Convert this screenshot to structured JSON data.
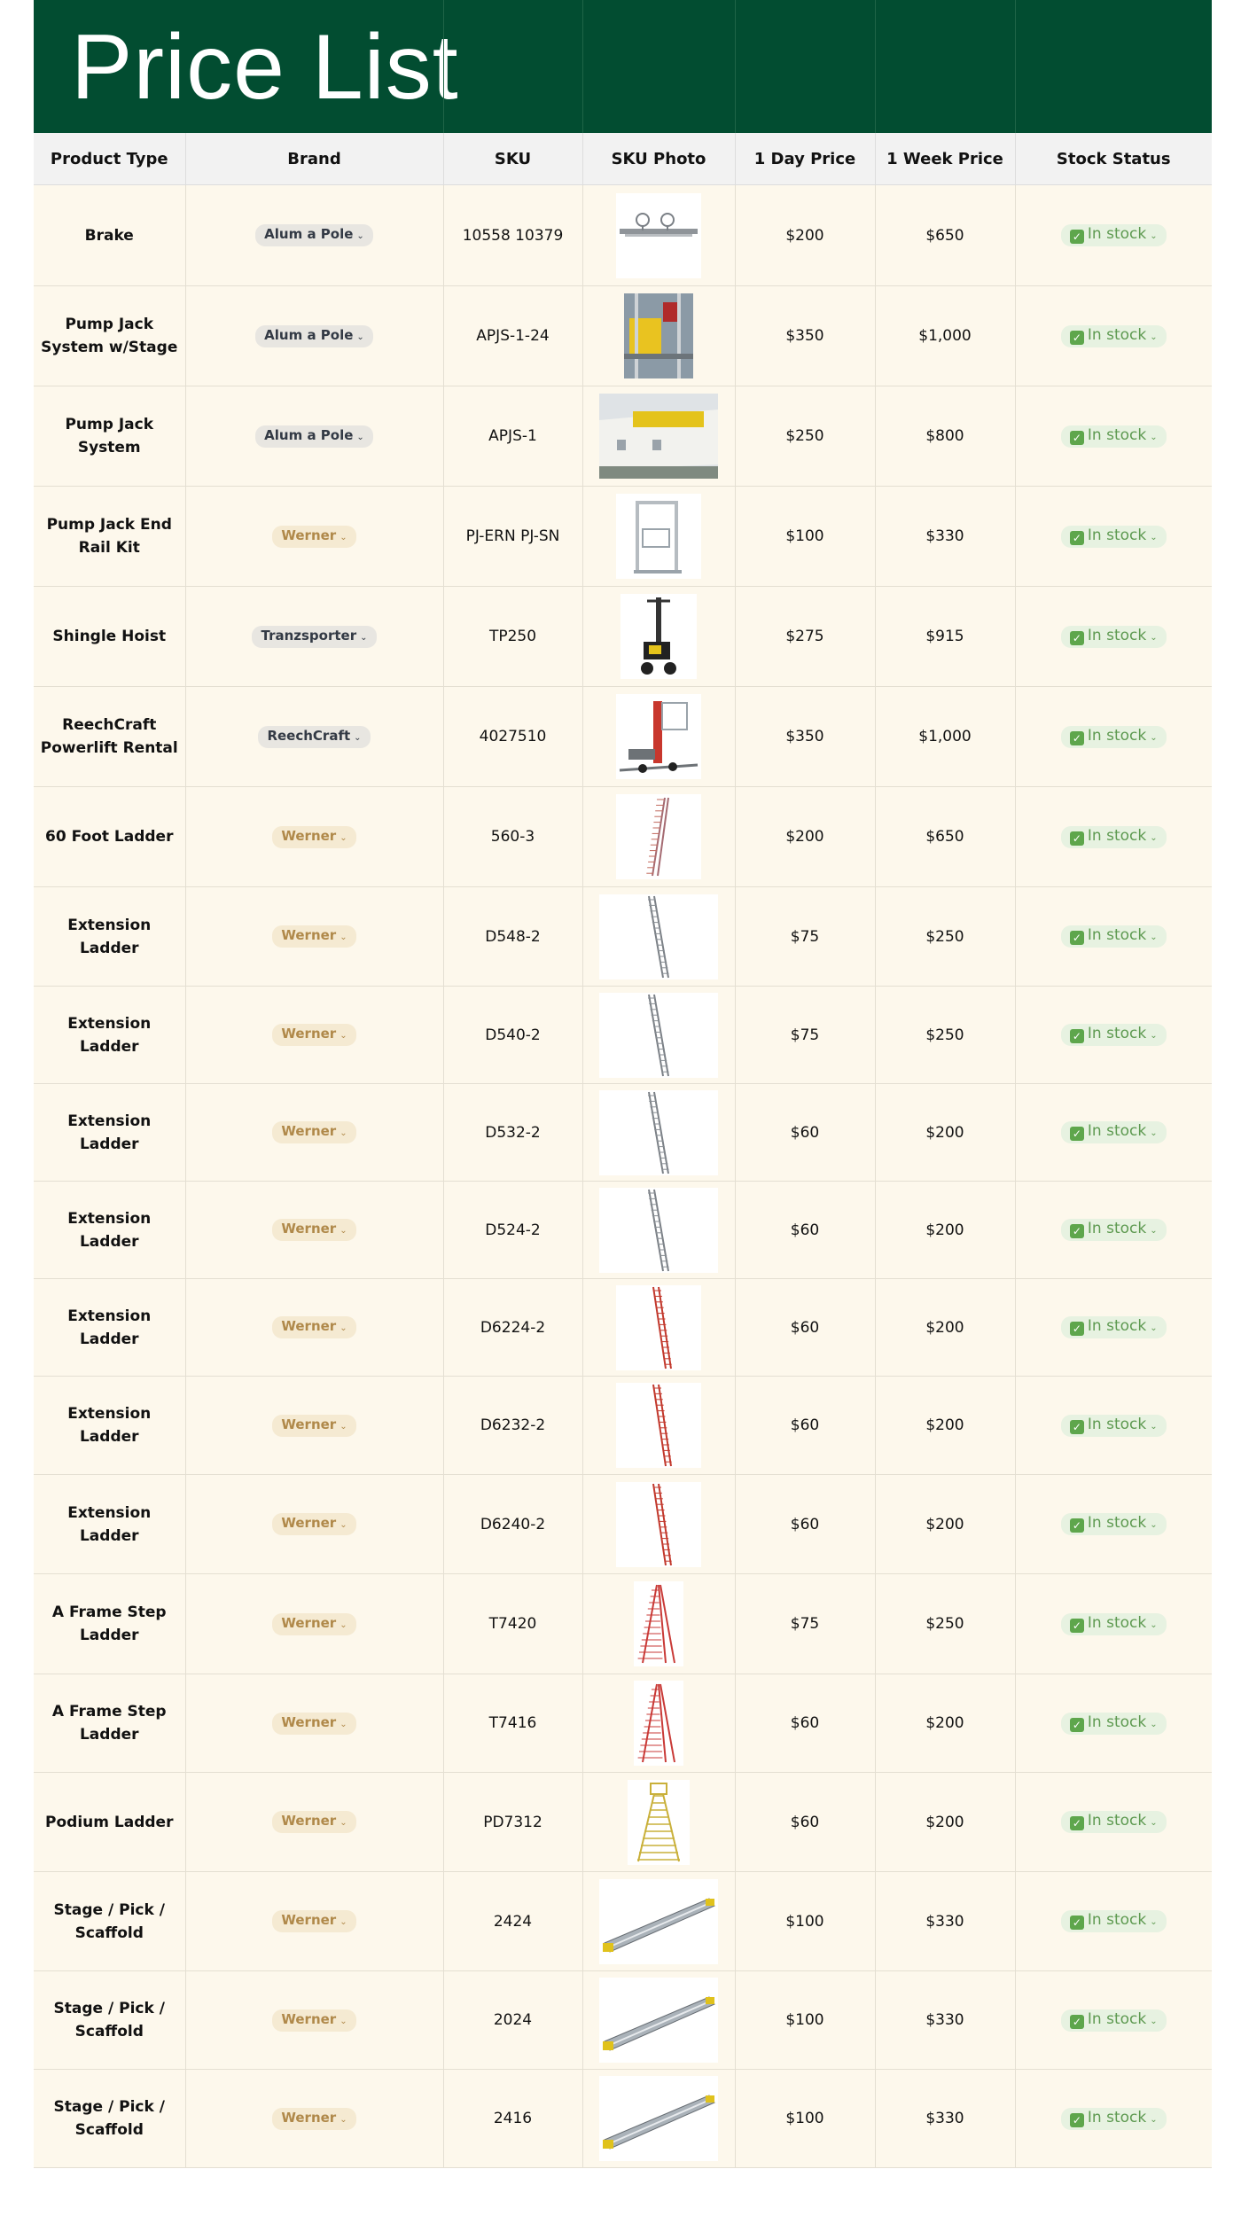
{
  "page": {
    "title": "Price List"
  },
  "columns": [
    "Product Type",
    "Brand",
    "SKU",
    "SKU Photo",
    "1 Day Price",
    "1 Week Price",
    "Stock Status"
  ],
  "colors": {
    "header_bg": "#024d31",
    "row_bg": "#fdf8ec",
    "in_stock": "#5e9a51",
    "brand_tan": "#b0894a"
  },
  "rows": [
    {
      "type": "Brake",
      "brand": "Alum a Pole",
      "sku": "10558 10379",
      "photo": "brake-photo",
      "day": "$200",
      "week": "$650",
      "stock": "In stock"
    },
    {
      "type": "Pump Jack System w/Stage",
      "brand": "Alum a Pole",
      "sku": "APJS-1-24",
      "photo": "pump-jack-stage-photo",
      "day": "$350",
      "week": "$1,000",
      "stock": "In stock"
    },
    {
      "type": "Pump Jack System",
      "brand": "Alum a Pole",
      "sku": "APJS-1",
      "photo": "pump-jack-system-photo",
      "day": "$250",
      "week": "$800",
      "stock": "In stock"
    },
    {
      "type": "Pump Jack End Rail Kit",
      "brand": "Werner",
      "sku": "PJ-ERN PJ-SN",
      "photo": "end-rail-kit-photo",
      "day": "$100",
      "week": "$330",
      "stock": "In stock"
    },
    {
      "type": "Shingle Hoist",
      "brand": "Tranzsporter",
      "sku": "TP250",
      "photo": "shingle-hoist-photo",
      "day": "$275",
      "week": "$915",
      "stock": "In stock"
    },
    {
      "type": "ReechCraft Powerlift Rental",
      "brand": "ReechCraft",
      "sku": "4027510",
      "photo": "powerlift-photo",
      "day": "$350",
      "week": "$1,000",
      "stock": "In stock"
    },
    {
      "type": "60 Foot Ladder",
      "brand": "Werner",
      "sku": "560-3",
      "photo": "ladder-60-photo",
      "day": "$200",
      "week": "$650",
      "stock": "In stock"
    },
    {
      "type": "Extension Ladder",
      "brand": "Werner",
      "sku": "D548-2",
      "photo": "extension-ladder-photo",
      "day": "$75",
      "week": "$250",
      "stock": "In stock"
    },
    {
      "type": "Extension Ladder",
      "brand": "Werner",
      "sku": "D540-2",
      "photo": "extension-ladder-photo",
      "day": "$75",
      "week": "$250",
      "stock": "In stock"
    },
    {
      "type": "Extension Ladder",
      "brand": "Werner",
      "sku": "D532-2",
      "photo": "extension-ladder-photo",
      "day": "$60",
      "week": "$200",
      "stock": "In stock"
    },
    {
      "type": "Extension Ladder",
      "brand": "Werner",
      "sku": "D524-2",
      "photo": "extension-ladder-photo",
      "day": "$60",
      "week": "$200",
      "stock": "In stock"
    },
    {
      "type": "Extension Ladder",
      "brand": "Werner",
      "sku": "D6224-2",
      "photo": "red-extension-ladder-photo",
      "day": "$60",
      "week": "$200",
      "stock": "In stock"
    },
    {
      "type": "Extension Ladder",
      "brand": "Werner",
      "sku": "D6232-2",
      "photo": "red-extension-ladder-photo",
      "day": "$60",
      "week": "$200",
      "stock": "In stock"
    },
    {
      "type": "Extension Ladder",
      "brand": "Werner",
      "sku": "D6240-2",
      "photo": "red-extension-ladder-photo",
      "day": "$60",
      "week": "$200",
      "stock": "In stock"
    },
    {
      "type": "A Frame Step Ladder",
      "brand": "Werner",
      "sku": "T7420",
      "photo": "a-frame-ladder-photo",
      "day": "$75",
      "week": "$250",
      "stock": "In stock"
    },
    {
      "type": "A Frame Step Ladder",
      "brand": "Werner",
      "sku": "T7416",
      "photo": "a-frame-ladder-photo",
      "day": "$60",
      "week": "$200",
      "stock": "In stock"
    },
    {
      "type": "Podium Ladder",
      "brand": "Werner",
      "sku": "PD7312",
      "photo": "podium-ladder-photo",
      "day": "$60",
      "week": "$200",
      "stock": "In stock"
    },
    {
      "type": "Stage / Pick / Scaffold",
      "brand": "Werner",
      "sku": "2424",
      "photo": "stage-plank-photo",
      "day": "$100",
      "week": "$330",
      "stock": "In stock"
    },
    {
      "type": "Stage / Pick / Scaffold",
      "brand": "Werner",
      "sku": "2024",
      "photo": "stage-plank-photo",
      "day": "$100",
      "week": "$330",
      "stock": "In stock"
    },
    {
      "type": "Stage / Pick / Scaffold",
      "brand": "Werner",
      "sku": "2416",
      "photo": "stage-plank-photo",
      "day": "$100",
      "week": "$330",
      "stock": "In stock"
    }
  ]
}
